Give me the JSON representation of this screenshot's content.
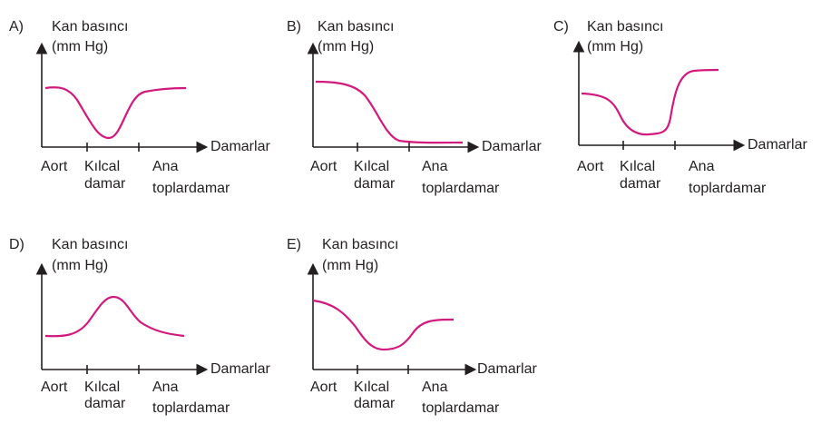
{
  "curve_color": "#d3197e",
  "axis_color": "#231f20",
  "y_label_line1": "Kan basıncı",
  "y_label_line2": "(mm Hg)",
  "x_label": "Damarlar",
  "ticks": {
    "aort": "Aort",
    "kilcal_1": "Kılcal",
    "kilcal_2": "damar",
    "ana_1": "Ana",
    "ana_2": "toplardamar"
  },
  "options": [
    {
      "letter": "A)",
      "curve_shape": "high at Aort, dips to minimum at Kılcal damar, rises to near-high plateau at Ana toplardamar"
    },
    {
      "letter": "B)",
      "curve_shape": "high at Aort, falls after Kılcal damar, stays low at Ana toplardamar"
    },
    {
      "letter": "C)",
      "curve_shape": "medium at Aort, minimum at Kılcal damar, rises sharply to highest at Ana toplardamar"
    },
    {
      "letter": "D)",
      "curve_shape": "low at Aort, peak at Kılcal damar, low at Ana toplardamar"
    },
    {
      "letter": "E)",
      "curve_shape": "high at Aort, minimum at Kılcal damar, medium at Ana toplardamar"
    }
  ]
}
